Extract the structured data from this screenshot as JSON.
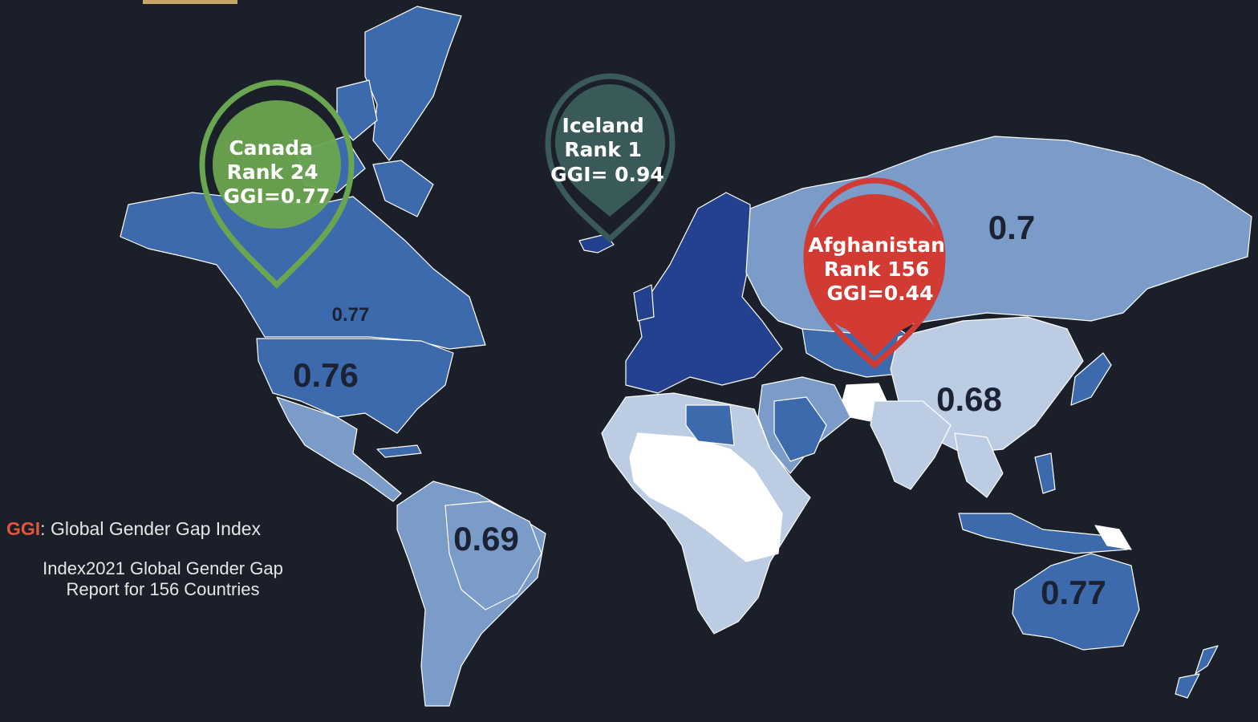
{
  "colors": {
    "background": "#1a1f29",
    "high": "#24418f",
    "mid": "#3d6aad",
    "mid_light": "#7b9cc9",
    "light": "#bccde3",
    "none": "#ffffff",
    "pin_canada": "#6aa54f",
    "pin_iceland": "#3a5a5a",
    "pin_afghanistan": "#d23a34",
    "accent": "#e0573c"
  },
  "legend": {
    "abbr": "GGI",
    "definition": ": Global Gender Gap Index",
    "source_line1": "Index2021 Global Gender Gap",
    "source_line2": "Report for 156 Countries"
  },
  "region_values": [
    {
      "text": "0.77",
      "size": "small"
    },
    {
      "text": "0.76",
      "size": "large"
    },
    {
      "text": "0.69",
      "size": "large"
    },
    {
      "text": "0.7",
      "size": "large"
    },
    {
      "text": "0.68",
      "size": "large"
    },
    {
      "text": "0.77",
      "size": "large"
    }
  ],
  "pins": [
    {
      "name": "canada",
      "lines": [
        "Canada",
        "Rank 24",
        "GGI=0.77"
      ],
      "color": "#6aa54f",
      "style": "outline-filled"
    },
    {
      "name": "iceland",
      "lines": [
        "Iceland",
        "Rank 1",
        "GGI= 0.94"
      ],
      "color": "#3a5a5a",
      "style": "outline-filled"
    },
    {
      "name": "afghanistan",
      "lines": [
        "Afghanistan",
        "Rank 156",
        "GGI=0.44"
      ],
      "color": "#d23a34",
      "style": "solid"
    }
  ]
}
